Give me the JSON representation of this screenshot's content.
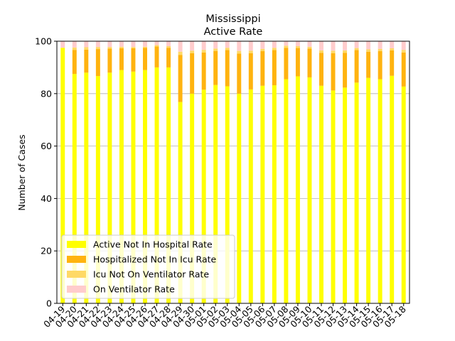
{
  "chart_data": {
    "type": "bar",
    "stacked": true,
    "title": "Mississippi",
    "subtitle": "Active Rate",
    "xlabel": "",
    "ylabel": "Number of Cases",
    "ylim": [
      0,
      100
    ],
    "yticks": [
      0,
      20,
      40,
      60,
      80,
      100
    ],
    "grid": "y",
    "legend_position": "lower-left",
    "categories": [
      "04-19",
      "04-20",
      "04-21",
      "04-22",
      "04-23",
      "04-24",
      "04-25",
      "04-26",
      "04-27",
      "04-28",
      "04-29",
      "04-30",
      "05-01",
      "05-02",
      "05-03",
      "05-04",
      "05-05",
      "05-06",
      "05-07",
      "05-08",
      "05-09",
      "05-10",
      "05-11",
      "05-12",
      "05-13",
      "05-14",
      "05-15",
      "05-16",
      "05-17",
      "05-18"
    ],
    "series": [
      {
        "name": "Active Not In Hospital Rate",
        "color": "#ffff00",
        "values": [
          97.5,
          87.5,
          88.0,
          86.7,
          88.0,
          89.0,
          88.4,
          89.0,
          90.0,
          90.0,
          76.8,
          80.0,
          81.5,
          83.3,
          82.8,
          80.0,
          81.6,
          83.0,
          83.2,
          85.5,
          86.6,
          86.2,
          83.0,
          81.2,
          82.3,
          84.2,
          86.0,
          85.5,
          86.8,
          82.7
        ]
      },
      {
        "name": "Hospitalized Not In Icu Rate",
        "color": "#ffb30f",
        "values": [
          0.0,
          9.2,
          8.8,
          10.3,
          9.2,
          8.3,
          8.9,
          8.5,
          8.0,
          7.5,
          18.0,
          15.4,
          14.2,
          13.0,
          13.8,
          15.3,
          13.8,
          13.2,
          13.4,
          12.0,
          10.8,
          11.0,
          12.6,
          14.2,
          13.3,
          12.4,
          10.0,
          10.7,
          9.7,
          13.0
        ]
      },
      {
        "name": "Icu Not On Ventilator Rate",
        "color": "#ffd966",
        "values": [
          0.0,
          0.9,
          0.9,
          0.8,
          0.6,
          0.6,
          0.5,
          0.4,
          0.5,
          0.6,
          1.2,
          1.0,
          1.0,
          0.9,
          0.9,
          1.0,
          1.0,
          0.9,
          0.9,
          0.8,
          0.7,
          0.7,
          0.9,
          1.0,
          0.9,
          0.8,
          0.9,
          0.9,
          0.8,
          1.0
        ]
      },
      {
        "name": "On Ventilator Rate",
        "color": "#ffcccc",
        "values": [
          2.5,
          2.4,
          2.3,
          2.2,
          2.2,
          2.1,
          2.2,
          2.1,
          1.5,
          1.9,
          4.0,
          3.6,
          3.3,
          2.8,
          2.5,
          3.7,
          3.6,
          2.9,
          2.5,
          1.7,
          1.9,
          2.1,
          3.5,
          3.6,
          3.5,
          2.6,
          3.1,
          2.9,
          2.7,
          3.3
        ]
      }
    ]
  }
}
